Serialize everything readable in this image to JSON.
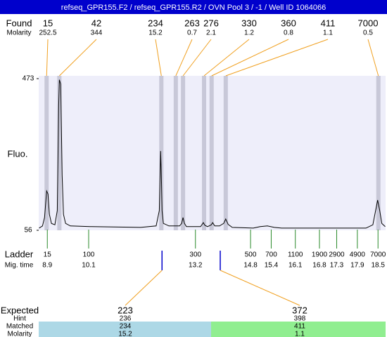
{
  "header": "refseq_GPR155.F2 / refseq_GPR155.R2 / OVN Pool 3 / -1 / Well ID 1064066",
  "chart_data": {
    "type": "line",
    "y_label": "Fluo.",
    "color": "#000000",
    "xlim": [
      8.65,
      18.72
    ],
    "ylim": [
      56,
      473
    ],
    "yticks": [
      56,
      473
    ],
    "x": [
      8.66,
      8.76,
      8.82,
      8.88,
      8.92,
      8.96,
      9.02,
      9.12,
      9.19,
      9.23,
      9.25,
      9.29,
      9.33,
      9.37,
      9.43,
      9.57,
      10.19,
      11.61,
      12.06,
      12.15,
      12.19,
      12.21,
      12.23,
      12.27,
      12.43,
      12.74,
      12.8,
      12.84,
      12.88,
      12.94,
      13.35,
      13.43,
      13.47,
      13.55,
      13.66,
      13.7,
      13.76,
      13.9,
      14.02,
      14.08,
      14.15,
      14.27,
      14.88,
      15.08,
      15.29,
      15.49,
      15.7,
      16.72,
      18.15,
      18.35,
      18.43,
      18.49,
      18.55,
      18.61,
      18.71
    ],
    "values": [
      62,
      68,
      91,
      164,
      156,
      100,
      75,
      71,
      110,
      400,
      470,
      458,
      207,
      100,
      75,
      68,
      66,
      64,
      68,
      110,
      274,
      207,
      110,
      75,
      68,
      68,
      75,
      91,
      75,
      66,
      66,
      77,
      70,
      66,
      71,
      77,
      68,
      68,
      75,
      87,
      72,
      64,
      62,
      66,
      68,
      64,
      62,
      62,
      62,
      71,
      110,
      139,
      110,
      75,
      66
    ],
    "found": {
      "label": "Found",
      "molarity_label": "Molarity",
      "sizes": [
        15,
        42,
        234,
        263,
        276,
        330,
        360,
        411,
        7000
      ],
      "molarity": [
        252.5,
        344,
        15.2,
        0.7,
        2.1,
        1.2,
        0.8,
        1.1,
        0.5
      ],
      "times": [
        8.88,
        9.25,
        12.21,
        12.63,
        12.84,
        13.45,
        13.67,
        14.08,
        18.51
      ],
      "band_color": "#c8c8d8",
      "line_color": "#f0a020"
    },
    "ladder": {
      "label": "Ladder",
      "time_label": "Mig. time",
      "sizes": [
        15,
        100,
        300,
        500,
        700,
        1100,
        1900,
        2900,
        4900,
        7000
      ],
      "times": [
        8.9,
        10.1,
        13.2,
        14.8,
        15.4,
        16.1,
        16.8,
        17.3,
        17.9,
        18.5
      ],
      "color": "#2a8a2a"
    },
    "expected": {
      "label": "Expected",
      "hint_label": "Hint",
      "matched_label": "Matched",
      "molarity_label": "Molarity",
      "sizes": [
        223,
        372
      ],
      "hint": [
        236,
        398
      ],
      "matched": [
        234,
        411
      ],
      "molarity": [
        15.2,
        1.1
      ],
      "times": [
        12.23,
        13.92
      ],
      "marker_color": "#0000cc",
      "colors": [
        "#add8e6",
        "#90ee90"
      ]
    }
  }
}
